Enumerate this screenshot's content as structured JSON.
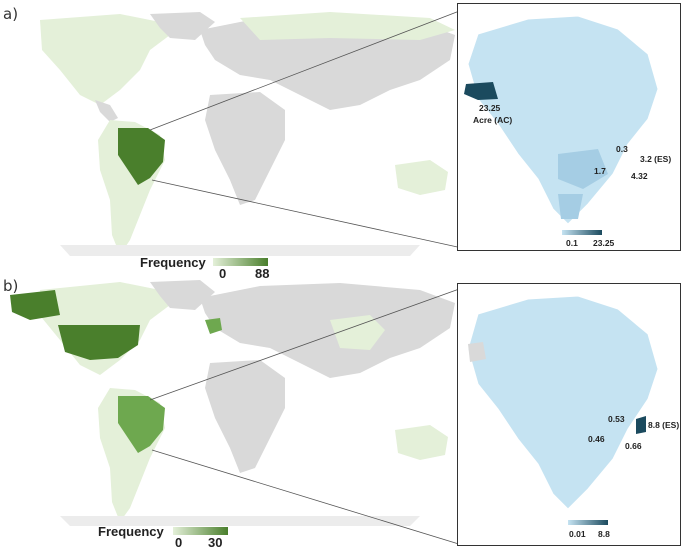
{
  "panels": [
    {
      "label": "a)",
      "legend": {
        "title": "Frequency",
        "min": "0",
        "max": "88"
      },
      "inset": {
        "state_values": [
          "23.25",
          "0.3",
          "3.2 (ES)",
          "1.7",
          "4.32"
        ],
        "state_name": "Acre (AC)",
        "scale_min": "0.1",
        "scale_max": "23.25"
      }
    },
    {
      "label": "b)",
      "legend": {
        "title": "Frequency",
        "min": "0",
        "max": "30"
      },
      "inset": {
        "state_values": [
          "0.53",
          "8.8 (ES)",
          "0.46",
          "0.66"
        ],
        "scale_min": "0.01",
        "scale_max": "8.8"
      }
    }
  ],
  "colors": {
    "land_gray": "#d9d9d9",
    "green_light": "#e4f0d9",
    "green_mid": "#6ea84f",
    "green_dark": "#4a7f2c",
    "blue_light": "#c5e3f2",
    "blue_mid": "#a5cde4",
    "blue_dark": "#1b4a5e"
  }
}
